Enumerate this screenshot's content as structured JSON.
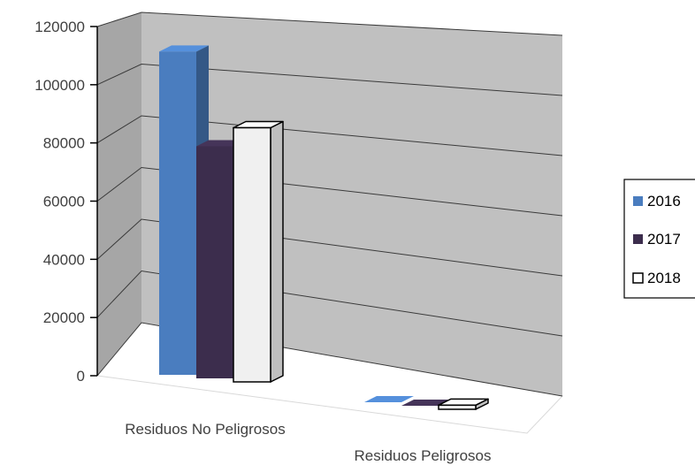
{
  "chart_data": {
    "type": "bar",
    "style": "3d-clustered-column",
    "categories": [
      "Residuos No Peligrosos",
      "Residuos Peligrosos"
    ],
    "series": [
      {
        "name": "2016",
        "values": [
          117000,
          0
        ],
        "color": "#4a7dbf"
      },
      {
        "name": "2017",
        "values": [
          84000,
          0
        ],
        "color": "#3c2d4d"
      },
      {
        "name": "2018",
        "values": [
          92000,
          1500
        ],
        "color": "#f0f0f0"
      }
    ],
    "ylim": [
      0,
      120000
    ],
    "yticks": [
      "0",
      "20000",
      "40000",
      "60000",
      "80000",
      "100000",
      "120000"
    ],
    "grid": true,
    "legend_position": "right",
    "wall_color": "#c0c0c0",
    "side_wall_color": "#a6a6a6"
  }
}
